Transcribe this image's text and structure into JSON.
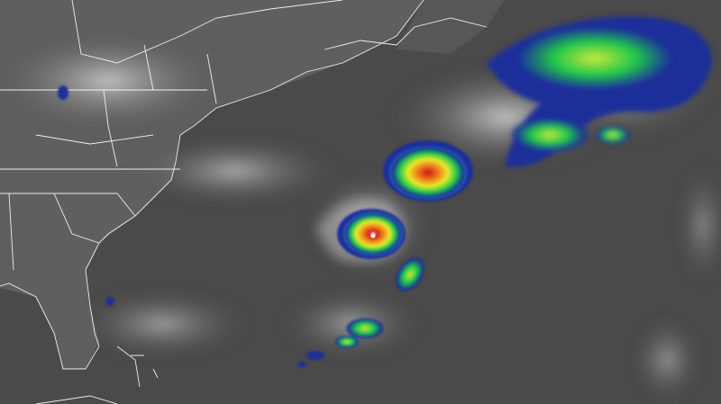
{
  "image": {
    "kind": "infrared satellite imagery",
    "colors": {
      "ocean_background": "#4a4a4a",
      "land": "#5e5e5e",
      "cloud_gray": "#b8b8b8",
      "boundary_lines": "#ffffff",
      "ir_cold_blue": "#1a2f9a",
      "ir_cyan": "#3fd3e6",
      "ir_green": "#22c94a",
      "ir_yellow": "#e8ec2a",
      "ir_orange": "#f08a1c",
      "ir_red": "#d2121a"
    },
    "features": [
      "hurricane-eye",
      "storm-cluster-north",
      "cloud-mass-northeast",
      "rainband-south",
      "us-east-coast",
      "florida",
      "bahamas",
      "canada-maritimes"
    ]
  }
}
